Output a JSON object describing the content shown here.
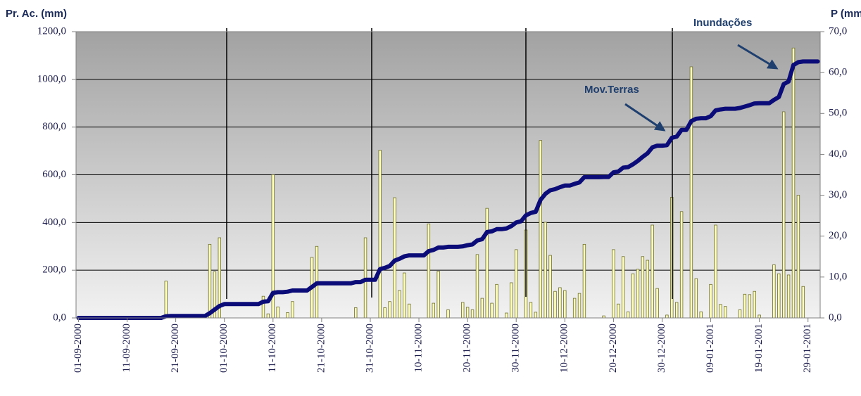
{
  "chart_data": {
    "type": "bar_line",
    "y_label": "Pr. Ac. (mm)",
    "y2_label": "P (mm)",
    "annotations": [
      "Mov.Terras",
      "Inundações"
    ],
    "categories": [
      "01-09-2000",
      null,
      null,
      null,
      null,
      null,
      null,
      null,
      null,
      null,
      "11-09-2000",
      null,
      null,
      null,
      null,
      null,
      null,
      null,
      null,
      null,
      "21-09-2000",
      null,
      null,
      null,
      null,
      null,
      null,
      null,
      null,
      null,
      "01-10-2000",
      null,
      null,
      null,
      null,
      null,
      null,
      null,
      null,
      null,
      "11-10-2000",
      null,
      null,
      null,
      null,
      null,
      null,
      null,
      null,
      null,
      "21-10-2000",
      null,
      null,
      null,
      null,
      null,
      null,
      null,
      null,
      null,
      "31-10-2000",
      null,
      null,
      null,
      null,
      null,
      null,
      null,
      null,
      null,
      "10-11-2000",
      null,
      null,
      null,
      null,
      null,
      null,
      null,
      null,
      null,
      "20-11-2000",
      null,
      null,
      null,
      null,
      null,
      null,
      null,
      null,
      null,
      "30-11-2000",
      null,
      null,
      null,
      null,
      null,
      null,
      null,
      null,
      null,
      "10-12-2000",
      null,
      null,
      null,
      null,
      null,
      null,
      null,
      null,
      null,
      "20-12-2000",
      null,
      null,
      null,
      null,
      null,
      null,
      null,
      null,
      null,
      "30-12-2000",
      null,
      null,
      null,
      null,
      null,
      null,
      null,
      null,
      null,
      "09-01-2001",
      null,
      null,
      null,
      null,
      null,
      null,
      null,
      null,
      null,
      "19-01-2001",
      null,
      null,
      null,
      null,
      null,
      null,
      null,
      null,
      null,
      "29-01-2001",
      null,
      null
    ],
    "series": [
      {
        "kind": "bar",
        "axis": "y2",
        "color": "#ffffc0",
        "values": [
          0,
          0,
          0,
          0,
          0,
          0,
          0,
          0,
          0,
          0,
          0,
          0,
          0,
          0,
          0,
          0,
          0,
          0,
          9,
          0,
          0,
          0,
          0,
          0,
          0,
          0,
          0,
          18,
          11.3,
          19.6,
          0,
          0,
          0,
          0,
          0,
          0,
          0,
          0,
          5.3,
          1,
          35,
          2.7,
          0,
          1.3,
          4,
          0,
          0,
          0,
          14.8,
          17.5,
          0,
          0,
          0,
          0,
          0,
          0,
          0,
          2.5,
          0,
          19.6,
          0,
          0,
          41,
          2.5,
          4,
          29.4,
          6.7,
          11,
          3.4,
          0,
          0,
          0,
          23,
          3.6,
          11.4,
          0,
          2,
          0,
          0,
          3.8,
          2.6,
          2,
          15.5,
          4.8,
          26.8,
          3.6,
          8.2,
          0,
          1.2,
          8.6,
          16.7,
          0,
          21.5,
          3.8,
          1.4,
          43.4,
          23.4,
          15.3,
          6.5,
          7.4,
          6.7,
          0,
          4.8,
          6,
          18,
          0,
          0,
          0,
          0.5,
          0,
          16.7,
          3.4,
          15,
          1.5,
          10.8,
          11.9,
          15,
          14.1,
          22.7,
          7.2,
          0,
          0.7,
          29.5,
          3.8,
          26,
          0,
          61.4,
          9.6,
          1.5,
          0,
          8.2,
          22.7,
          3.3,
          2.8,
          0,
          0,
          2,
          5.8,
          5.7,
          6.5,
          0.7,
          0,
          0,
          13,
          10.8,
          50.4,
          10.5,
          66,
          30,
          7.7,
          0,
          0,
          0
        ]
      },
      {
        "kind": "line",
        "axis": "y",
        "color": "#0c0c78",
        "values": [
          0,
          0,
          0,
          0,
          0,
          0,
          0,
          0,
          0,
          0,
          0,
          0,
          0,
          0,
          0,
          0,
          0,
          0,
          7,
          8,
          8,
          8,
          8,
          8,
          8,
          8,
          8,
          20,
          35,
          50,
          58,
          58,
          58,
          58,
          58,
          58,
          58,
          58,
          68,
          70,
          105,
          108,
          108,
          110,
          115,
          115,
          115,
          115,
          130,
          145,
          145,
          145,
          145,
          145,
          145,
          145,
          145,
          150,
          150,
          160,
          160,
          160,
          205,
          210,
          218,
          240,
          248,
          258,
          262,
          262,
          262,
          262,
          280,
          285,
          295,
          295,
          298,
          298,
          298,
          300,
          305,
          308,
          325,
          330,
          360,
          363,
          372,
          372,
          375,
          385,
          400,
          405,
          430,
          440,
          445,
          495,
          520,
          535,
          540,
          548,
          555,
          555,
          562,
          568,
          590,
          590,
          590,
          590,
          591,
          591,
          610,
          614,
          630,
          632,
          644,
          658,
          675,
          690,
          715,
          722,
          722,
          724,
          755,
          760,
          788,
          788,
          825,
          835,
          837,
          837,
          846,
          870,
          874,
          877,
          877,
          877,
          880,
          886,
          892,
          899,
          900,
          900,
          900,
          914,
          926,
          980,
          991,
          1060,
          1072,
          1075,
          1075,
          1075,
          1075
        ]
      }
    ],
    "ylim": [
      0,
      1200
    ],
    "yticks": [
      {
        "value": 0,
        "label": "0,0"
      },
      {
        "value": 200,
        "label": "200,0"
      },
      {
        "value": 400,
        "label": "400,0"
      },
      {
        "value": 600,
        "label": "600,0"
      },
      {
        "value": 800,
        "label": "800,0"
      },
      {
        "value": 1000,
        "label": "1000,0"
      },
      {
        "value": 1200,
        "label": "1200,0"
      }
    ],
    "y2lim": [
      0,
      70
    ],
    "y2ticks": [
      {
        "value": 0,
        "label": "0,0"
      },
      {
        "value": 10,
        "label": "10,0"
      },
      {
        "value": 20,
        "label": "20,0"
      },
      {
        "value": 30,
        "label": "30,0"
      },
      {
        "value": 40,
        "label": "40,0"
      },
      {
        "value": 50,
        "label": "50,0"
      },
      {
        "value": 60,
        "label": "60,0"
      },
      {
        "value": 70,
        "label": "70,0"
      }
    ],
    "grid": true
  }
}
